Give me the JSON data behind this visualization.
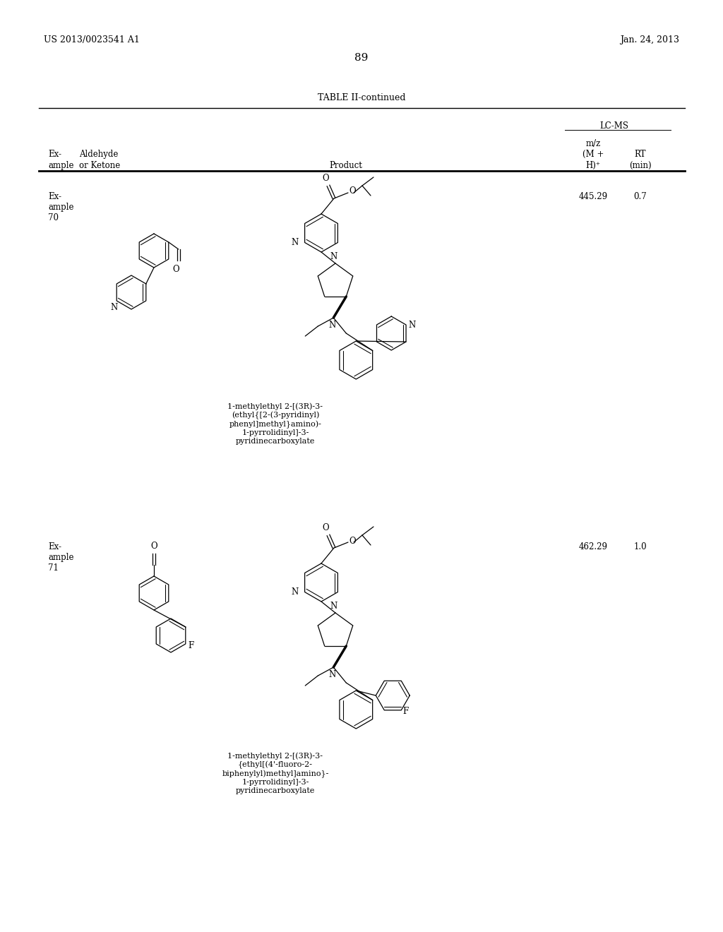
{
  "background_color": "#ffffff",
  "page_number": "89",
  "patent_number": "US 2013/0023541 A1",
  "patent_date": "Jan. 24, 2013",
  "table_title": "TABLE II-continued",
  "ex70_mz": "445.29",
  "ex70_rt": "0.7",
  "ex70_product_name": "1-methylethyl 2-[(3R)-3-\n(ethyl{[2-(3-pyridinyl)\nphenyl]methyl}amino)-\n1-pyrrolidinyl]-3-\npyridinecarboxylate",
  "ex71_mz": "462.29",
  "ex71_rt": "1.0",
  "ex71_product_name": "1-methylethyl 2-[(3R)-3-\n{ethyl[(4'-fluoro-2-\nbiphenylyl)methyl]amino}-\n1-pyrrolidinyl]-3-\npyridinecarboxylate"
}
